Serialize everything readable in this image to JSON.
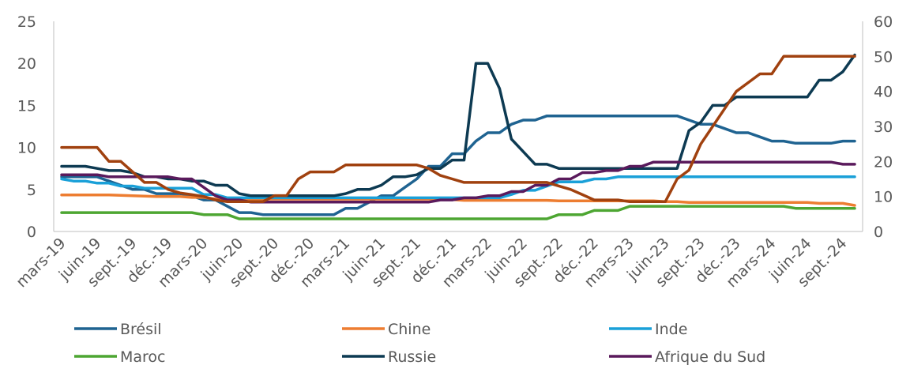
{
  "chart_data": {
    "type": "line",
    "title": "",
    "xlabel": "",
    "ylabel": "",
    "ylim_left": [
      0,
      25
    ],
    "yticks_left": [
      "0",
      "5",
      "10",
      "15",
      "20",
      "25"
    ],
    "ylim_right": [
      0,
      60
    ],
    "yticks_right": [
      "0",
      "10",
      "20",
      "30",
      "40",
      "50",
      "60"
    ],
    "grid": false,
    "legend_position": "bottom",
    "x": [
      "mars-19",
      "avr.-19",
      "mai-19",
      "juin-19",
      "juil.-19",
      "août-19",
      "sept.-19",
      "oct.-19",
      "nov.-19",
      "déc.-19",
      "janv.-20",
      "févr.-20",
      "mars-20",
      "avr.-20",
      "mai-20",
      "juin-20",
      "juil.-20",
      "août-20",
      "sept.-20",
      "oct.-20",
      "nov.-20",
      "déc.-20",
      "janv.-21",
      "févr.-21",
      "mars-21",
      "avr.-21",
      "mai-21",
      "juin-21",
      "juil.-21",
      "août-21",
      "sept.-21",
      "oct.-21",
      "nov.-21",
      "déc.-21",
      "janv.-22",
      "févr.-22",
      "mars-22",
      "avr.-22",
      "mai-22",
      "juin-22",
      "juil.-22",
      "août-22",
      "sept.-22",
      "oct.-22",
      "nov.-22",
      "déc.-22",
      "janv.-23",
      "févr.-23",
      "mars-23",
      "avr.-23",
      "mai-23",
      "juin-23",
      "juil.-23",
      "août-23",
      "sept.-23",
      "oct.-23",
      "nov.-23",
      "déc.-23",
      "janv.-24",
      "févr.-24",
      "mars-24",
      "avr.-24",
      "mai-24",
      "juin-24",
      "juil.-24",
      "août-24",
      "sept.-24",
      "oct.-24"
    ],
    "x_tick_labels": [
      "mars-19",
      "juin-19",
      "sept.-19",
      "déc.-19",
      "mars-20",
      "juin-20",
      "sept.-20",
      "déc.-20",
      "mars-21",
      "juin-21",
      "sept.-21",
      "déc.-21",
      "mars-22",
      "juin-22",
      "sept.-22",
      "déc.-22",
      "mars-23",
      "juin-23",
      "sept.-23",
      "déc.-23",
      "mars-24",
      "juin-24",
      "sept.-24"
    ],
    "series": [
      {
        "name": "Brésil",
        "axis": "left",
        "color": "#1f6391",
        "values": [
          6.5,
          6.5,
          6.5,
          6.5,
          6.0,
          5.5,
          5.0,
          5.0,
          4.5,
          4.5,
          4.5,
          4.25,
          3.75,
          3.75,
          3.0,
          2.25,
          2.25,
          2.0,
          2.0,
          2.0,
          2.0,
          2.0,
          2.0,
          2.0,
          2.75,
          2.75,
          3.5,
          4.25,
          4.25,
          5.25,
          6.25,
          7.75,
          7.75,
          9.25,
          9.25,
          10.75,
          11.75,
          11.75,
          12.75,
          13.25,
          13.25,
          13.75,
          13.75,
          13.75,
          13.75,
          13.75,
          13.75,
          13.75,
          13.75,
          13.75,
          13.75,
          13.75,
          13.75,
          13.25,
          12.75,
          12.75,
          12.25,
          11.75,
          11.75,
          11.25,
          10.75,
          10.75,
          10.5,
          10.5,
          10.5,
          10.5,
          10.75,
          10.75
        ]
      },
      {
        "name": "Chine",
        "axis": "left",
        "color": "#ed7d31",
        "values": [
          4.35,
          4.35,
          4.35,
          4.35,
          4.35,
          4.3,
          4.25,
          4.2,
          4.15,
          4.15,
          4.15,
          4.05,
          4.05,
          3.85,
          3.85,
          3.85,
          3.85,
          3.85,
          3.85,
          3.85,
          3.85,
          3.85,
          3.85,
          3.85,
          3.85,
          3.85,
          3.85,
          3.85,
          3.85,
          3.85,
          3.85,
          3.85,
          3.85,
          3.8,
          3.7,
          3.7,
          3.7,
          3.7,
          3.7,
          3.7,
          3.7,
          3.7,
          3.65,
          3.65,
          3.65,
          3.65,
          3.65,
          3.65,
          3.65,
          3.65,
          3.65,
          3.55,
          3.55,
          3.45,
          3.45,
          3.45,
          3.45,
          3.45,
          3.45,
          3.45,
          3.45,
          3.45,
          3.45,
          3.45,
          3.35,
          3.35,
          3.35,
          3.1
        ]
      },
      {
        "name": "Inde",
        "axis": "left",
        "color": "#1aa0d8",
        "values": [
          6.25,
          6.0,
          6.0,
          5.75,
          5.75,
          5.4,
          5.4,
          5.15,
          5.15,
          5.15,
          5.15,
          5.15,
          4.4,
          4.4,
          4.0,
          4.0,
          4.0,
          4.0,
          4.0,
          4.0,
          4.0,
          4.0,
          4.0,
          4.0,
          4.0,
          4.0,
          4.0,
          4.0,
          4.0,
          4.0,
          4.0,
          4.0,
          4.0,
          4.0,
          4.0,
          4.0,
          4.0,
          4.0,
          4.4,
          4.9,
          4.9,
          5.4,
          5.9,
          5.9,
          5.9,
          6.25,
          6.25,
          6.5,
          6.5,
          6.5,
          6.5,
          6.5,
          6.5,
          6.5,
          6.5,
          6.5,
          6.5,
          6.5,
          6.5,
          6.5,
          6.5,
          6.5,
          6.5,
          6.5,
          6.5,
          6.5,
          6.5,
          6.5
        ]
      },
      {
        "name": "Maroc",
        "axis": "left",
        "color": "#4da632",
        "values": [
          2.25,
          2.25,
          2.25,
          2.25,
          2.25,
          2.25,
          2.25,
          2.25,
          2.25,
          2.25,
          2.25,
          2.25,
          2.0,
          2.0,
          2.0,
          1.5,
          1.5,
          1.5,
          1.5,
          1.5,
          1.5,
          1.5,
          1.5,
          1.5,
          1.5,
          1.5,
          1.5,
          1.5,
          1.5,
          1.5,
          1.5,
          1.5,
          1.5,
          1.5,
          1.5,
          1.5,
          1.5,
          1.5,
          1.5,
          1.5,
          1.5,
          1.5,
          2.0,
          2.0,
          2.0,
          2.5,
          2.5,
          2.5,
          3.0,
          3.0,
          3.0,
          3.0,
          3.0,
          3.0,
          3.0,
          3.0,
          3.0,
          3.0,
          3.0,
          3.0,
          3.0,
          3.0,
          2.75,
          2.75,
          2.75,
          2.75,
          2.75,
          2.75
        ]
      },
      {
        "name": "Russie",
        "axis": "left",
        "color": "#0d3a52",
        "values": [
          7.75,
          7.75,
          7.75,
          7.5,
          7.25,
          7.25,
          7.0,
          6.5,
          6.5,
          6.25,
          6.25,
          6.0,
          6.0,
          5.5,
          5.5,
          4.5,
          4.25,
          4.25,
          4.25,
          4.25,
          4.25,
          4.25,
          4.25,
          4.25,
          4.5,
          5.0,
          5.0,
          5.5,
          6.5,
          6.5,
          6.75,
          7.5,
          7.5,
          8.5,
          8.5,
          20.0,
          20.0,
          17.0,
          11.0,
          9.5,
          8.0,
          8.0,
          7.5,
          7.5,
          7.5,
          7.5,
          7.5,
          7.5,
          7.5,
          7.5,
          7.5,
          7.5,
          7.5,
          12.0,
          13.0,
          15.0,
          15.0,
          16.0,
          16.0,
          16.0,
          16.0,
          16.0,
          16.0,
          16.0,
          18.0,
          18.0,
          19.0,
          21.0
        ]
      },
      {
        "name": "Afrique du Sud",
        "axis": "left",
        "color": "#5a1a5c",
        "values": [
          6.75,
          6.75,
          6.75,
          6.75,
          6.5,
          6.5,
          6.5,
          6.5,
          6.5,
          6.5,
          6.25,
          6.25,
          5.25,
          4.25,
          3.75,
          3.75,
          3.5,
          3.5,
          3.5,
          3.5,
          3.5,
          3.5,
          3.5,
          3.5,
          3.5,
          3.5,
          3.5,
          3.5,
          3.5,
          3.5,
          3.5,
          3.5,
          3.75,
          3.75,
          4.0,
          4.0,
          4.25,
          4.25,
          4.75,
          4.75,
          5.5,
          5.5,
          6.25,
          6.25,
          7.0,
          7.0,
          7.25,
          7.25,
          7.75,
          7.75,
          8.25,
          8.25,
          8.25,
          8.25,
          8.25,
          8.25,
          8.25,
          8.25,
          8.25,
          8.25,
          8.25,
          8.25,
          8.25,
          8.25,
          8.25,
          8.25,
          8.0,
          8.0
        ]
      },
      {
        "name": "",
        "axis": "right",
        "color": "#a0410f",
        "values": [
          24,
          24,
          24,
          24,
          20,
          20,
          17,
          14,
          14,
          12,
          11,
          10.5,
          10,
          9,
          8.5,
          8.5,
          8.5,
          8.5,
          10.25,
          10.25,
          15,
          17,
          17,
          17,
          19,
          19,
          19,
          19,
          19,
          19,
          19,
          18,
          16,
          15,
          14,
          14,
          14,
          14,
          14,
          14,
          14,
          14,
          13,
          12,
          10.5,
          9,
          9,
          9,
          8.5,
          8.5,
          8.5,
          8.5,
          15,
          17.5,
          25,
          30,
          35,
          40,
          42.5,
          45,
          45,
          50,
          50,
          50,
          50,
          50,
          50,
          50
        ]
      }
    ]
  },
  "legend": [
    {
      "label": "Brésil",
      "color": "#1f6391"
    },
    {
      "label": "Chine",
      "color": "#ed7d31"
    },
    {
      "label": "Inde",
      "color": "#1aa0d8"
    },
    {
      "label": "Maroc",
      "color": "#4da632"
    },
    {
      "label": "Russie",
      "color": "#0d3a52"
    },
    {
      "label": "Afrique du Sud",
      "color": "#5a1a5c"
    }
  ]
}
